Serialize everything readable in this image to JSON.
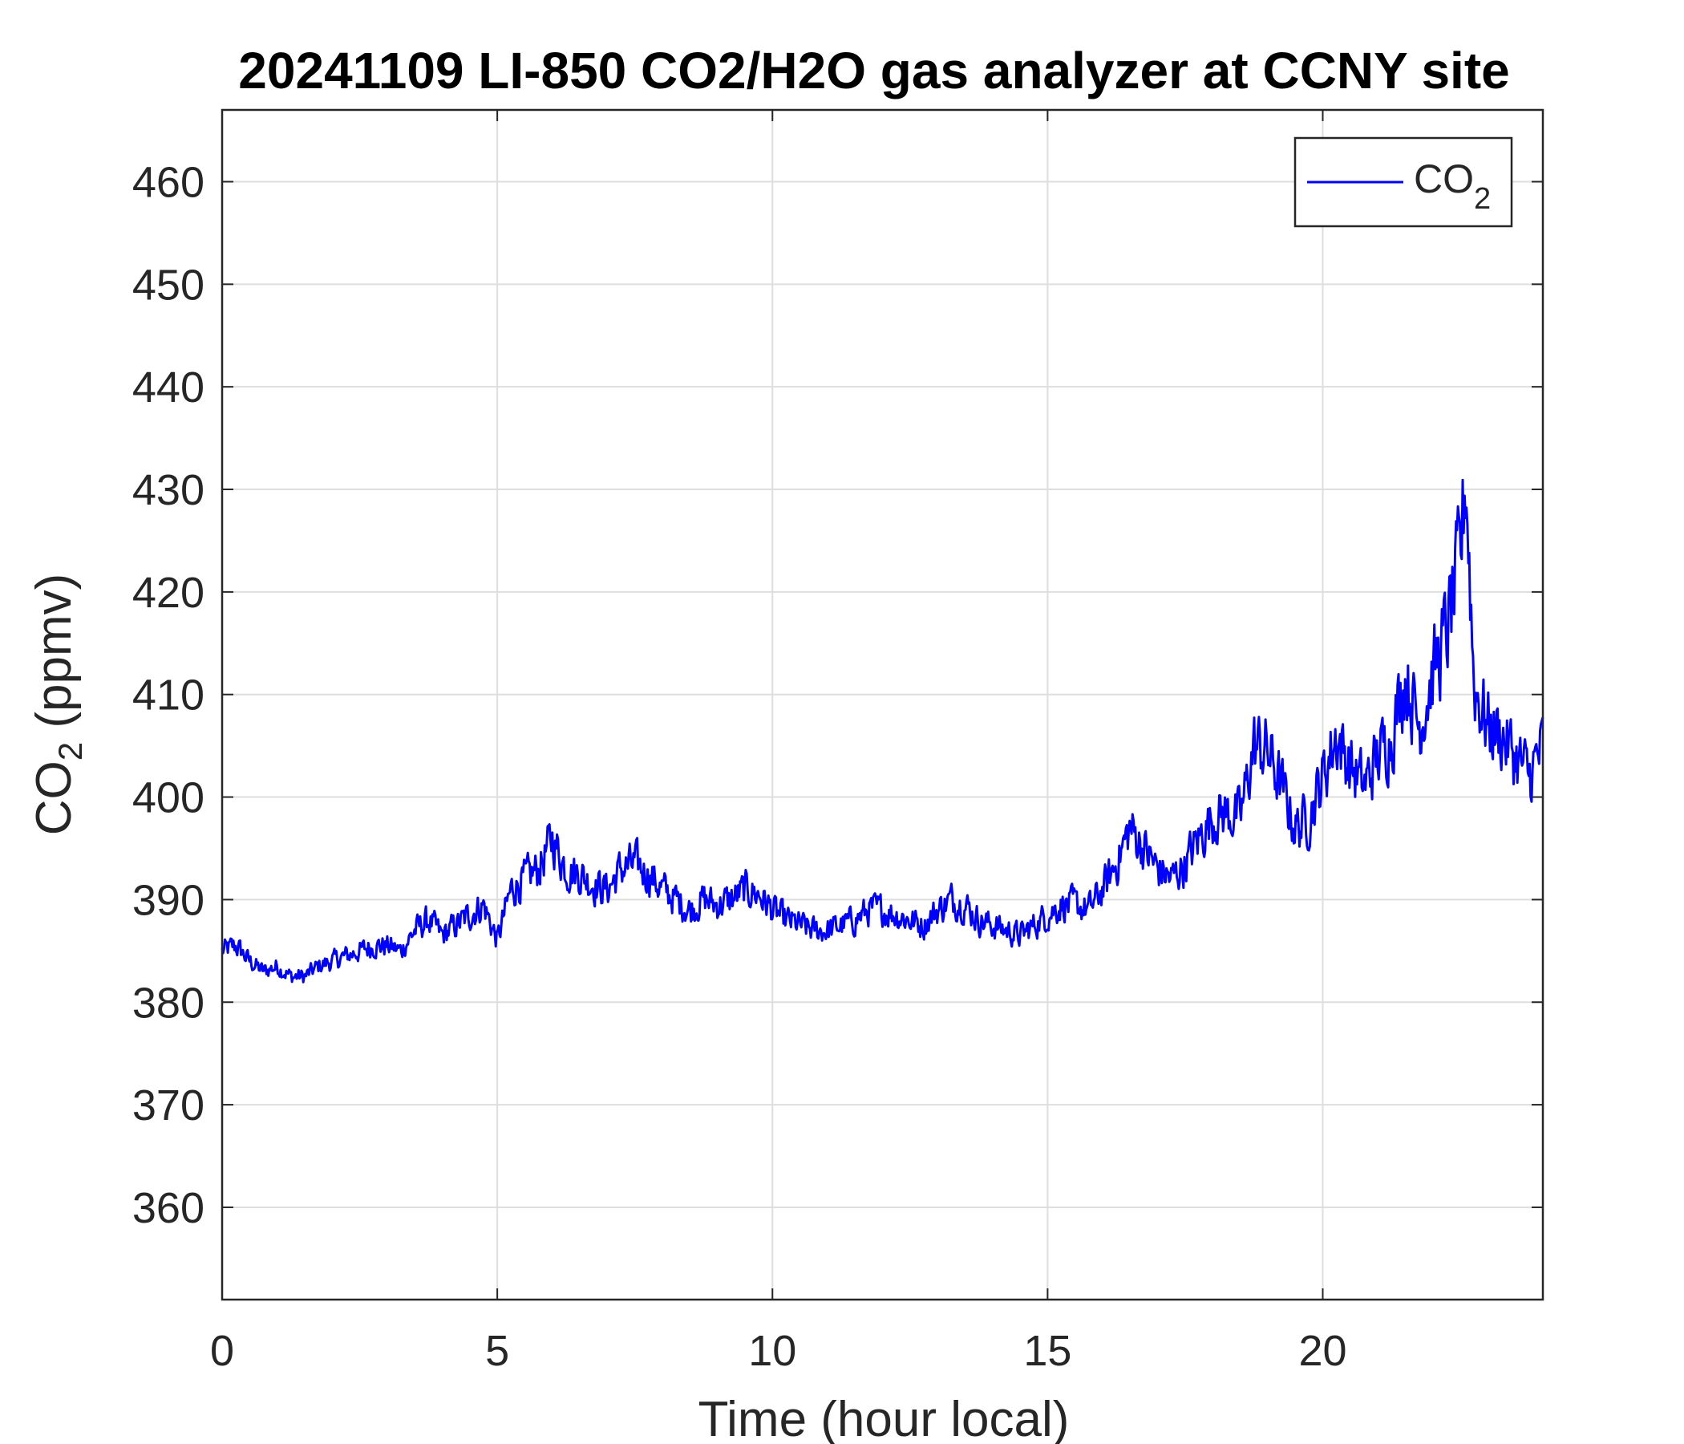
{
  "chart_data": {
    "type": "line",
    "title": "20241109 LI-850 CO2/H2O gas analyzer at CCNY site",
    "xlabel": "Time (hour local)",
    "ylabel": {
      "main": "CO",
      "sub": "2",
      "unit": " (ppmv)"
    },
    "xlim": [
      0,
      24
    ],
    "ylim": [
      351,
      467
    ],
    "xticks": [
      0,
      5,
      10,
      15,
      20
    ],
    "yticks": [
      360,
      370,
      380,
      390,
      400,
      410,
      420,
      430,
      440,
      450,
      460
    ],
    "grid": true,
    "legend": {
      "position": "top-right",
      "entries": [
        {
          "main": "CO",
          "sub": "2"
        }
      ]
    },
    "series": [
      {
        "name": "CO2",
        "color": "#0000ff",
        "x": [
          0,
          0.25,
          0.5,
          0.75,
          1.0,
          1.25,
          1.5,
          1.75,
          2.0,
          2.25,
          2.5,
          2.75,
          3.0,
          3.25,
          3.5,
          3.75,
          4.0,
          4.25,
          4.5,
          4.75,
          5.0,
          5.25,
          5.5,
          5.75,
          6.0,
          6.25,
          6.5,
          6.75,
          7.0,
          7.25,
          7.5,
          7.75,
          8.0,
          8.25,
          8.5,
          8.75,
          9.0,
          9.25,
          9.5,
          9.75,
          10.0,
          10.25,
          10.5,
          10.75,
          11.0,
          11.25,
          11.5,
          11.75,
          12.0,
          12.25,
          12.5,
          12.75,
          13.0,
          13.25,
          13.5,
          13.75,
          14.0,
          14.25,
          14.5,
          14.75,
          15.0,
          15.25,
          15.5,
          15.75,
          16.0,
          16.25,
          16.5,
          16.75,
          17.0,
          17.25,
          17.5,
          17.75,
          18.0,
          18.25,
          18.5,
          18.75,
          19.0,
          19.25,
          19.5,
          19.75,
          20.0,
          20.25,
          20.5,
          20.75,
          21.0,
          21.25,
          21.5,
          21.75,
          22.0,
          22.25,
          22.5,
          22.6,
          22.75,
          23.0,
          23.25,
          23.5,
          23.75,
          24.0
        ],
        "y": [
          385,
          385.5,
          384,
          383,
          383.5,
          382.5,
          382.5,
          383.5,
          384,
          384.5,
          385,
          385.5,
          385.5,
          385,
          387,
          388,
          386.5,
          387.5,
          388.5,
          389.5,
          386,
          391,
          392,
          393,
          396,
          393,
          392.5,
          391.5,
          391,
          393,
          393.5,
          392.5,
          391,
          390,
          389,
          390,
          389.5,
          390,
          391,
          390.5,
          389,
          388,
          387.5,
          387,
          387,
          387.5,
          388,
          389,
          389,
          388.5,
          388,
          387.5,
          389,
          390,
          389.5,
          388,
          387.5,
          387,
          386.5,
          387.5,
          388.5,
          389.5,
          389.5,
          389,
          391,
          393.5,
          397,
          395,
          393,
          392,
          393.5,
          396,
          398,
          398.5,
          398,
          405,
          404.5,
          401,
          397,
          398,
          402,
          406,
          403,
          401,
          404,
          406,
          412,
          407,
          412,
          416,
          423,
          432,
          411,
          407,
          406,
          404,
          402,
          405
        ]
      }
    ]
  }
}
